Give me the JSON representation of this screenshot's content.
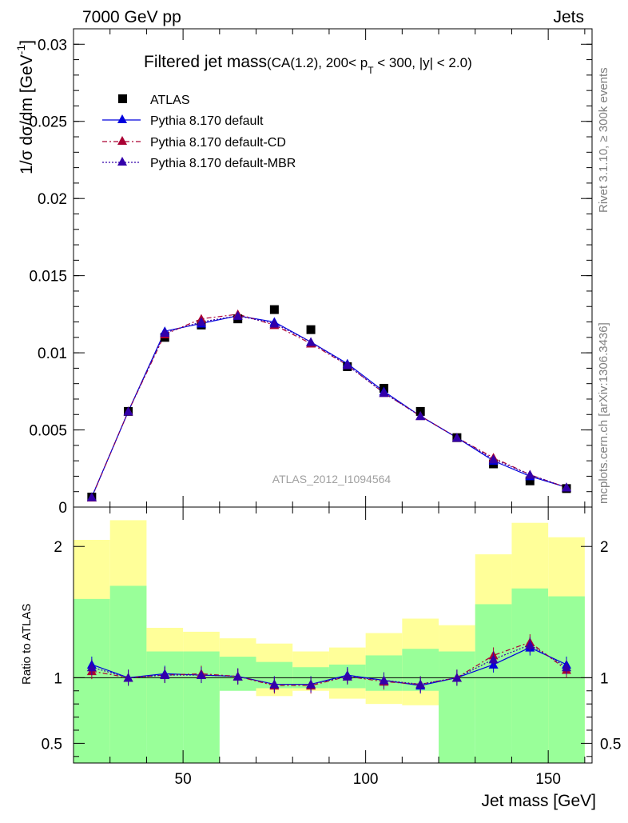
{
  "header": {
    "left": "7000 GeV pp",
    "right": "Jets"
  },
  "side_labels": {
    "rivet": "Rivet 3.1.10, ≥ 300k events",
    "url": "mcplots.cern.ch [arXiv:1306.3436]"
  },
  "watermark": "ATLAS_2012_I1094564",
  "chart_data": [
    {
      "type": "scatter",
      "title": "Filtered jet mass",
      "title_suffix_a": "(CA(1.2), 200< p",
      "title_sub": "T",
      "title_suffix_b": " < 300, |y| < 2.0)",
      "ylabel": "1/σ dσ/dm [GeV",
      "ylabel_sup": "-1",
      "ylabel_end": "]",
      "xlim": [
        20,
        162
      ],
      "ylim": [
        0,
        0.031
      ],
      "yticks": [
        0,
        0.005,
        0.01,
        0.015,
        0.02,
        0.025,
        0.03
      ],
      "ytick_labels": [
        "0",
        "0.005",
        "0.01",
        "0.015",
        "0.02",
        "0.025",
        "0.03"
      ],
      "x": [
        25,
        35,
        45,
        55,
        65,
        75,
        85,
        95,
        105,
        115,
        125,
        135,
        145,
        155
      ],
      "data": {
        "name": "ATLAS",
        "color": "#000000",
        "values": [
          0.00065,
          0.0062,
          0.011,
          0.0118,
          0.0122,
          0.0128,
          0.0115,
          0.0091,
          0.0077,
          0.0062,
          0.0045,
          0.0028,
          0.0017,
          0.0012
        ]
      },
      "series": [
        {
          "name": "Pythia 8.170 default",
          "color": "#0000dd",
          "dash": "none",
          "values": [
            0.00065,
            0.0062,
            0.0114,
            0.0119,
            0.0124,
            0.012,
            0.0107,
            0.0093,
            0.0075,
            0.0059,
            0.0045,
            0.003,
            0.002,
            0.00128
          ]
        },
        {
          "name": "Pythia 8.170 default-CD",
          "color": "#aa0033",
          "dash": "6,3,2,3",
          "values": [
            0.00062,
            0.0062,
            0.0112,
            0.0122,
            0.0125,
            0.0118,
            0.0106,
            0.0092,
            0.0074,
            0.0059,
            0.0045,
            0.0032,
            0.0021,
            0.00127
          ]
        },
        {
          "name": "Pythia 8.170 default-MBR",
          "color": "#3300aa",
          "dash": "2,2",
          "values": [
            0.00064,
            0.0062,
            0.0113,
            0.012,
            0.0124,
            0.0119,
            0.0107,
            0.0092,
            0.0074,
            0.0059,
            0.0045,
            0.0031,
            0.0021,
            0.00127
          ]
        }
      ],
      "legend_position": "top-left"
    },
    {
      "type": "line",
      "ylabel": "Ratio to ATLAS",
      "xlabel": "Jet mass [GeV]",
      "xlim": [
        20,
        162
      ],
      "ylim": [
        0.35,
        2.3
      ],
      "xticks": [
        50,
        100,
        150
      ],
      "xtick_labels": [
        "50",
        "100",
        "150"
      ],
      "yticks": [
        0.5,
        1,
        2
      ],
      "ytick_labels": [
        "0.5",
        "1",
        "2"
      ],
      "x": [
        25,
        35,
        45,
        55,
        65,
        75,
        85,
        95,
        105,
        115,
        125,
        135,
        145,
        155
      ],
      "band_edges": [
        20,
        30,
        40,
        50,
        60,
        70,
        80,
        90,
        100,
        110,
        120,
        130,
        140,
        150,
        160
      ],
      "yellow_band": {
        "lo": [
          0.1,
          0.58,
          0.6,
          0.82,
          0.93,
          0.86,
          0.9,
          0.84,
          0.8,
          0.79,
          0.72,
          0.7,
          0.56,
          0.3
        ],
        "hi": [
          2.05,
          2.2,
          1.38,
          1.35,
          1.3,
          1.26,
          1.2,
          1.23,
          1.34,
          1.45,
          1.4,
          1.94,
          2.18,
          2.07
        ]
      },
      "green_band": {
        "lo": [
          0.1,
          0.1,
          0.1,
          0.1,
          0.9,
          0.92,
          0.92,
          0.92,
          0.9,
          0.9,
          0.35,
          0.1,
          0.1,
          0.1
        ],
        "hi": [
          1.6,
          1.7,
          1.2,
          1.2,
          1.16,
          1.12,
          1.08,
          1.1,
          1.17,
          1.22,
          1.2,
          1.56,
          1.68,
          1.62
        ]
      },
      "series": [
        {
          "name": "Pythia 8.170 default",
          "color": "#0000dd",
          "dash": "none",
          "values": [
            1.1,
            1.0,
            1.03,
            1.02,
            1.01,
            0.95,
            0.95,
            1.02,
            0.98,
            0.94,
            1.0,
            1.1,
            1.23,
            1.1
          ]
        },
        {
          "name": "Pythia 8.170 default-CD",
          "color": "#aa0033",
          "dash": "6,3,2,3",
          "values": [
            1.05,
            1.0,
            1.02,
            1.03,
            1.01,
            0.94,
            0.94,
            1.01,
            0.97,
            0.95,
            1.0,
            1.17,
            1.27,
            1.06
          ]
        },
        {
          "name": "Pythia 8.170 default-MBR",
          "color": "#3300aa",
          "dash": "2,2",
          "values": [
            1.08,
            1.0,
            1.02,
            1.02,
            1.01,
            0.95,
            0.95,
            1.01,
            0.98,
            0.95,
            1.0,
            1.14,
            1.25,
            1.08
          ]
        }
      ]
    }
  ]
}
